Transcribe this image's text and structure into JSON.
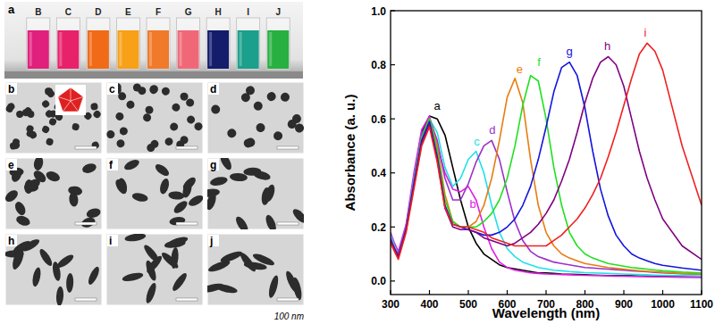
{
  "chart_data": {
    "type": "line",
    "x_label": "Wavelength (nm)",
    "y_label": "Absorbance (a. u.)",
    "xlim": [
      300,
      1100
    ],
    "xticks": [
      300,
      400,
      500,
      600,
      700,
      800,
      900,
      1000,
      1100
    ],
    "ylim": [
      -0.05,
      1.0
    ],
    "yticks": [
      {
        "value": 0,
        "label": "0.0"
      },
      {
        "value": 0.2,
        "label": "0.2"
      },
      {
        "value": 0.4,
        "label": "0.4"
      },
      {
        "value": 0.6,
        "label": "0.6"
      },
      {
        "value": 0.8,
        "label": "0.8"
      },
      {
        "value": 1.0,
        "label": "1.0"
      }
    ],
    "grid": false,
    "x": [
      300,
      310,
      320,
      340,
      360,
      380,
      400,
      420,
      440,
      460,
      480,
      500,
      520,
      540,
      560,
      580,
      600,
      620,
      640,
      660,
      680,
      700,
      720,
      740,
      760,
      780,
      800,
      820,
      840,
      860,
      880,
      900,
      920,
      940,
      960,
      980,
      1000,
      1050,
      1100
    ],
    "series": [
      {
        "name": "a",
        "color": "#000000",
        "values": [
          0.17,
          0.13,
          0.1,
          0.2,
          0.38,
          0.55,
          0.61,
          0.6,
          0.54,
          0.42,
          0.3,
          0.2,
          0.14,
          0.1,
          0.08,
          0.06,
          0.05,
          0.045,
          0.04,
          0.035,
          0.03,
          0.03,
          0.028,
          0.026,
          0.025,
          0.024,
          0.023,
          0.022,
          0.021,
          0.02,
          0.02,
          0.02,
          0.019,
          0.018,
          0.018,
          0.017,
          0.017,
          0.016,
          0.015
        ]
      },
      {
        "name": "b",
        "color": "#e020e0",
        "values": [
          0.18,
          0.14,
          0.11,
          0.21,
          0.4,
          0.56,
          0.61,
          0.5,
          0.4,
          0.34,
          0.33,
          0.35,
          0.3,
          0.2,
          0.12,
          0.07,
          0.05,
          0.04,
          0.035,
          0.03,
          0.028,
          0.026,
          0.025,
          0.024,
          0.023,
          0.022,
          0.021,
          0.02,
          0.02,
          0.019,
          0.018,
          0.018,
          0.017,
          0.017,
          0.016,
          0.016,
          0.015,
          0.014,
          0.013
        ]
      },
      {
        "name": "c",
        "color": "#20e0e8",
        "values": [
          0.17,
          0.13,
          0.1,
          0.2,
          0.38,
          0.54,
          0.6,
          0.55,
          0.42,
          0.35,
          0.38,
          0.45,
          0.48,
          0.4,
          0.28,
          0.18,
          0.12,
          0.09,
          0.07,
          0.06,
          0.05,
          0.045,
          0.04,
          0.038,
          0.035,
          0.033,
          0.031,
          0.03,
          0.029,
          0.028,
          0.027,
          0.026,
          0.025,
          0.024,
          0.023,
          0.022,
          0.021,
          0.02,
          0.019
        ]
      },
      {
        "name": "d",
        "color": "#9b30c8",
        "values": [
          0.16,
          0.12,
          0.1,
          0.2,
          0.37,
          0.54,
          0.6,
          0.52,
          0.38,
          0.3,
          0.3,
          0.36,
          0.44,
          0.5,
          0.52,
          0.45,
          0.33,
          0.22,
          0.15,
          0.11,
          0.09,
          0.08,
          0.07,
          0.065,
          0.06,
          0.055,
          0.05,
          0.048,
          0.046,
          0.044,
          0.042,
          0.04,
          0.038,
          0.036,
          0.034,
          0.032,
          0.03,
          0.027,
          0.025
        ]
      },
      {
        "name": "e",
        "color": "#e87c10",
        "values": [
          0.15,
          0.12,
          0.09,
          0.19,
          0.36,
          0.53,
          0.6,
          0.5,
          0.32,
          0.22,
          0.2,
          0.2,
          0.22,
          0.28,
          0.38,
          0.52,
          0.68,
          0.75,
          0.66,
          0.45,
          0.28,
          0.18,
          0.13,
          0.1,
          0.085,
          0.075,
          0.065,
          0.06,
          0.055,
          0.05,
          0.047,
          0.044,
          0.041,
          0.038,
          0.036,
          0.034,
          0.032,
          0.028,
          0.025
        ]
      },
      {
        "name": "f",
        "color": "#20e020",
        "values": [
          0.15,
          0.12,
          0.09,
          0.19,
          0.36,
          0.53,
          0.6,
          0.48,
          0.3,
          0.22,
          0.2,
          0.2,
          0.2,
          0.22,
          0.25,
          0.3,
          0.38,
          0.5,
          0.65,
          0.76,
          0.74,
          0.6,
          0.42,
          0.28,
          0.18,
          0.13,
          0.1,
          0.085,
          0.075,
          0.065,
          0.06,
          0.055,
          0.05,
          0.047,
          0.044,
          0.041,
          0.038,
          0.033,
          0.03
        ]
      },
      {
        "name": "g",
        "color": "#1414e0",
        "values": [
          0.15,
          0.12,
          0.09,
          0.19,
          0.36,
          0.52,
          0.59,
          0.46,
          0.28,
          0.21,
          0.2,
          0.19,
          0.18,
          0.17,
          0.17,
          0.18,
          0.2,
          0.23,
          0.28,
          0.35,
          0.45,
          0.57,
          0.7,
          0.79,
          0.81,
          0.76,
          0.64,
          0.48,
          0.34,
          0.24,
          0.17,
          0.13,
          0.1,
          0.085,
          0.075,
          0.065,
          0.058,
          0.048,
          0.04
        ]
      },
      {
        "name": "h",
        "color": "#800080",
        "values": [
          0.15,
          0.12,
          0.09,
          0.19,
          0.35,
          0.51,
          0.58,
          0.45,
          0.27,
          0.2,
          0.19,
          0.19,
          0.18,
          0.16,
          0.15,
          0.14,
          0.13,
          0.14,
          0.16,
          0.18,
          0.21,
          0.25,
          0.3,
          0.37,
          0.45,
          0.55,
          0.66,
          0.75,
          0.81,
          0.83,
          0.8,
          0.72,
          0.6,
          0.48,
          0.38,
          0.3,
          0.23,
          0.13,
          0.08
        ]
      },
      {
        "name": "i",
        "color": "#f02020",
        "values": [
          0.14,
          0.11,
          0.08,
          0.18,
          0.34,
          0.5,
          0.57,
          0.44,
          0.27,
          0.21,
          0.2,
          0.2,
          0.19,
          0.18,
          0.16,
          0.15,
          0.14,
          0.13,
          0.13,
          0.13,
          0.13,
          0.13,
          0.15,
          0.17,
          0.2,
          0.23,
          0.27,
          0.32,
          0.38,
          0.46,
          0.55,
          0.65,
          0.75,
          0.84,
          0.88,
          0.85,
          0.78,
          0.5,
          0.28
        ]
      }
    ],
    "annotations": [
      {
        "text": "a",
        "x": 420,
        "y": 0.635,
        "color": "#000000"
      },
      {
        "text": "b",
        "x": 512,
        "y": 0.27,
        "color": "#e020e0"
      },
      {
        "text": "c",
        "x": 522,
        "y": 0.5,
        "color": "#20e0e8"
      },
      {
        "text": "d",
        "x": 562,
        "y": 0.545,
        "color": "#9b30c8"
      },
      {
        "text": "e",
        "x": 632,
        "y": 0.77,
        "color": "#e87c10"
      },
      {
        "text": "f",
        "x": 682,
        "y": 0.795,
        "color": "#20e020"
      },
      {
        "text": "g",
        "x": 760,
        "y": 0.835,
        "color": "#1414e0"
      },
      {
        "text": "h",
        "x": 858,
        "y": 0.855,
        "color": "#800080"
      },
      {
        "text": "i",
        "x": 955,
        "y": 0.905,
        "color": "#f02020"
      }
    ]
  },
  "figure": {
    "photo_label": "a",
    "vials": [
      {
        "label": "B",
        "color": "#e0207c"
      },
      {
        "label": "C",
        "color": "#e8226a"
      },
      {
        "label": "D",
        "color": "#f06a18"
      },
      {
        "label": "E",
        "color": "#f8a018"
      },
      {
        "label": "F",
        "color": "#f07a2a"
      },
      {
        "label": "G",
        "color": "#f06878"
      },
      {
        "label": "H",
        "color": "#141c6c"
      },
      {
        "label": "I",
        "color": "#1aa08c"
      },
      {
        "label": "J",
        "color": "#28b040"
      }
    ],
    "tem_panels": [
      "b",
      "c",
      "d",
      "e",
      "f",
      "g",
      "h",
      "i",
      "j"
    ],
    "scale_caption": "100 nm"
  }
}
